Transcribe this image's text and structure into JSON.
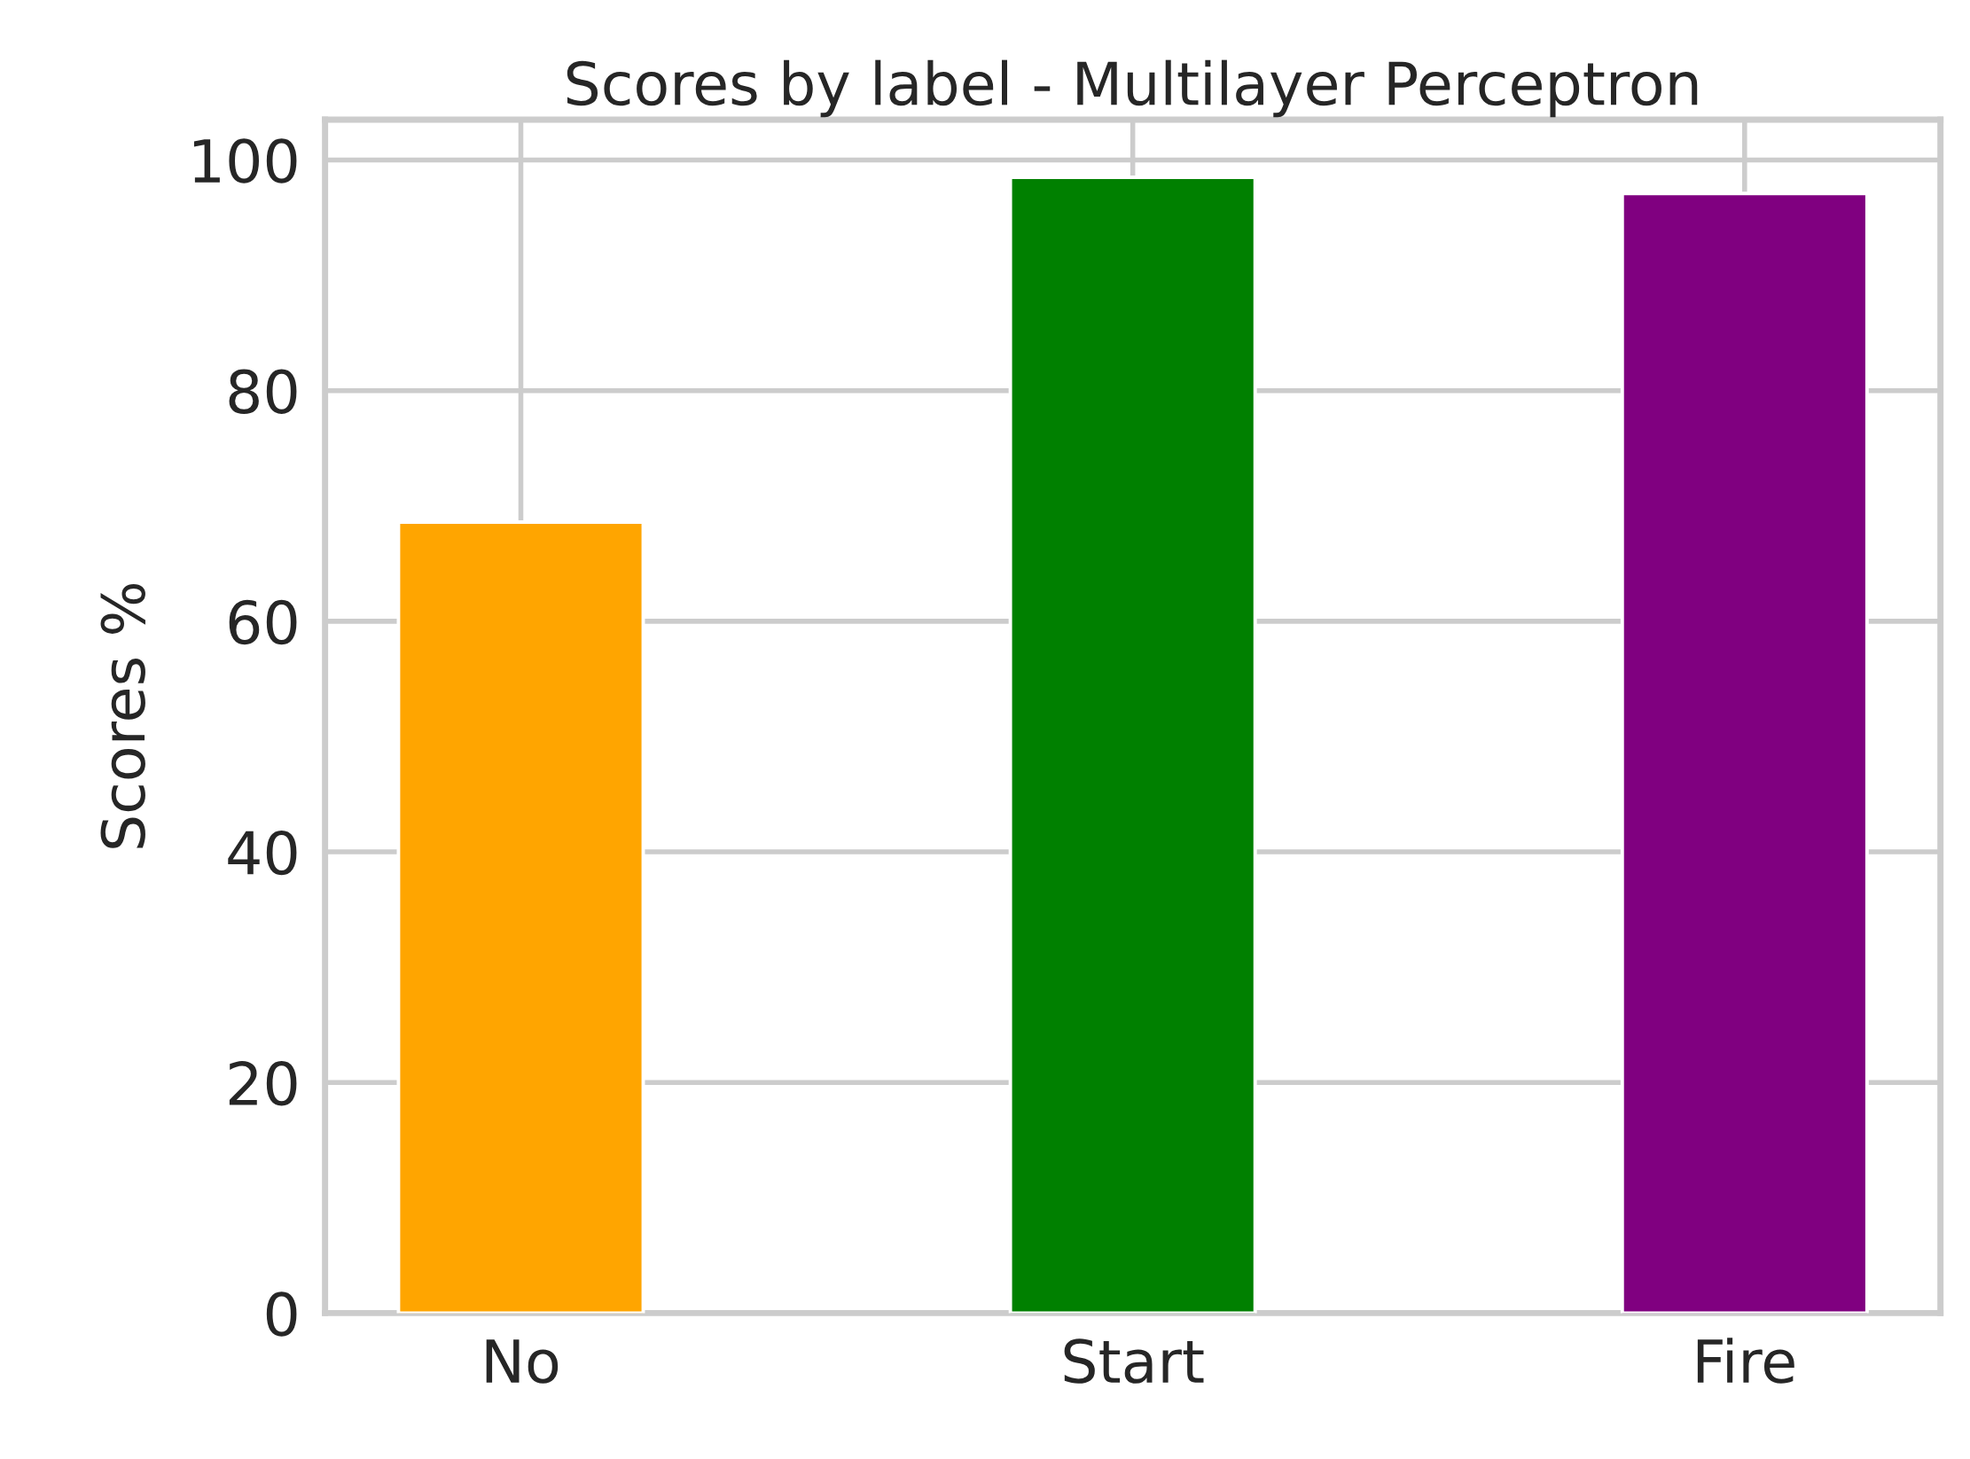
{
  "chart_data": {
    "type": "bar",
    "title": "Scores by label - Multilayer Perceptron",
    "ylabel": "Scores %",
    "categories": [
      "No",
      "Start",
      "Fire"
    ],
    "values": [
      68.6,
      98.5,
      97.1
    ],
    "colors": [
      "#ffa500",
      "#008000",
      "#800080"
    ],
    "ylim": [
      0,
      103.5
    ],
    "yticks": [
      0,
      20,
      40,
      60,
      80,
      100
    ],
    "grid": true
  }
}
